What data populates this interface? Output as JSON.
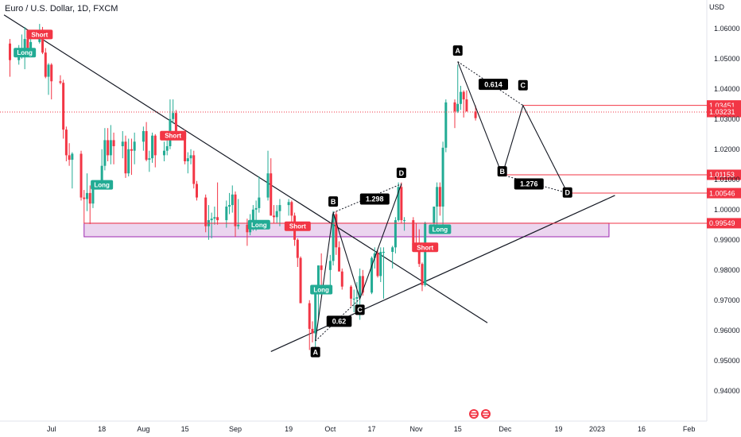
{
  "title": "Euro / U.S. Dollar, 1D, FXCM",
  "currency": "USD",
  "colors": {
    "up": "#22ab94",
    "down": "#f23645",
    "zone_fill": "#e1bee7",
    "zone_stroke": "#9c27b0",
    "level": "#f23645"
  },
  "chart_data": {
    "type": "candlestick",
    "y_axis": {
      "ticks": [
        "1.06000",
        "1.05000",
        "1.04000",
        "1.03000",
        "1.02000",
        "1.01000",
        "1.00000",
        "0.99000",
        "0.98000",
        "0.97000",
        "0.96000",
        "0.95000",
        "0.94000"
      ],
      "ylim": [
        0.933,
        1.067
      ]
    },
    "x_axis": {
      "ticks": [
        "Jul",
        "18",
        "Aug",
        "15",
        "Sep",
        "19",
        "Oct",
        "17",
        "Nov",
        "15",
        "Dec",
        "19",
        "2023",
        "16",
        "Feb"
      ]
    },
    "price_labels": [
      {
        "value": "1.03451",
        "style": "red"
      },
      {
        "value": "1.03231",
        "style": "red"
      },
      {
        "value": "1.01153",
        "style": "red"
      },
      {
        "value": "1.00546",
        "style": "red"
      },
      {
        "value": "0.99549",
        "style": "red"
      }
    ],
    "signals": [
      {
        "label": "Long",
        "type": "long",
        "date": "2022-06-22",
        "price": 1.052
      },
      {
        "label": "Short",
        "type": "short",
        "date": "2022-06-27",
        "price": 1.058
      },
      {
        "label": "Short",
        "type": "short",
        "date": "2022-08-11",
        "price": 1.0245
      },
      {
        "label": "Long",
        "type": "long",
        "date": "2022-07-18",
        "price": 1.0082
      },
      {
        "label": "Long",
        "type": "long",
        "date": "2022-09-09",
        "price": 0.995
      },
      {
        "label": "Short",
        "type": "short",
        "date": "2022-09-22",
        "price": 0.9945
      },
      {
        "label": "Long",
        "type": "long",
        "date": "2022-09-30",
        "price": 0.9735
      },
      {
        "label": "Long",
        "type": "long",
        "date": "2022-11-09",
        "price": 0.9935
      },
      {
        "label": "Short",
        "type": "short",
        "date": "2022-11-04",
        "price": 0.9875
      }
    ],
    "harmonic_past": {
      "points": [
        {
          "label": "A",
          "date": "2022-09-28",
          "price": 0.9565
        },
        {
          "label": "B",
          "date": "2022-10-04",
          "price": 0.999
        },
        {
          "label": "C",
          "date": "2022-10-13",
          "price": 0.9705
        },
        {
          "label": "D",
          "date": "2022-10-27",
          "price": 1.0085
        }
      ],
      "ratios": [
        {
          "label": "0.62",
          "date": "2022-10-06",
          "price": 0.963
        },
        {
          "label": "1.298",
          "date": "2022-10-18",
          "price": 1.0035
        }
      ]
    },
    "harmonic_projection": {
      "points": [
        {
          "label": "A",
          "date": "2022-11-15",
          "price": 1.049
        },
        {
          "label": "C",
          "date": "2022-12-07",
          "price": 1.0375
        },
        {
          "label": "B",
          "date": "2022-11-30",
          "price": 1.009
        },
        {
          "label": "D",
          "date": "2022-12-22",
          "price": 1.002
        }
      ],
      "path": [
        {
          "date": "2022-11-15",
          "price": 1.049
        },
        {
          "date": "2022-11-30",
          "price": 1.0115
        },
        {
          "date": "2022-12-07",
          "price": 1.0345
        },
        {
          "date": "2022-12-22",
          "price": 1.0055
        }
      ],
      "ratios": [
        {
          "label": "0.614",
          "date": "2022-11-27",
          "price": 1.0415
        },
        {
          "label": "1.276",
          "date": "2022-12-09",
          "price": 1.0085
        }
      ]
    },
    "trendlines": [
      {
        "from": {
          "date": "2022-06-15",
          "price": 1.0645
        },
        "to": {
          "date": "2022-11-25",
          "price": 0.9625
        }
      },
      {
        "from": {
          "date": "2022-09-13",
          "price": 0.953
        },
        "to": {
          "date": "2023-01-07",
          "price": 1.0047
        }
      }
    ],
    "zone": {
      "from_date": "2022-07-12",
      "to_date": "2023-01-05",
      "top": 0.9955,
      "bottom": 0.991
    },
    "candles": [
      {
        "date": "2022-06-17",
        "o": 1.055,
        "h": 1.0565,
        "l": 1.044,
        "c": 1.0495
      },
      {
        "date": "2022-06-20",
        "o": 1.0495,
        "h": 1.0545,
        "l": 1.048,
        "c": 1.052
      },
      {
        "date": "2022-06-21",
        "o": 1.052,
        "h": 1.058,
        "l": 1.05,
        "c": 1.0535
      },
      {
        "date": "2022-06-22",
        "o": 1.0535,
        "h": 1.0605,
        "l": 1.0465,
        "c": 1.0565
      },
      {
        "date": "2022-06-23",
        "o": 1.0565,
        "h": 1.057,
        "l": 1.051,
        "c": 1.052
      },
      {
        "date": "2022-06-24",
        "o": 1.052,
        "h": 1.0575,
        "l": 1.0505,
        "c": 1.0555
      },
      {
        "date": "2022-06-27",
        "o": 1.0555,
        "h": 1.0615,
        "l": 1.055,
        "c": 1.0585
      },
      {
        "date": "2022-06-28",
        "o": 1.0585,
        "h": 1.0605,
        "l": 1.0515,
        "c": 1.052
      },
      {
        "date": "2022-06-29",
        "o": 1.052,
        "h": 1.0535,
        "l": 1.0435,
        "c": 1.044
      },
      {
        "date": "2022-06-30",
        "o": 1.044,
        "h": 1.0485,
        "l": 1.038,
        "c": 1.048
      },
      {
        "date": "2022-07-01",
        "o": 1.048,
        "h": 1.0485,
        "l": 1.0365,
        "c": 1.0425
      },
      {
        "date": "2022-07-04",
        "o": 1.0425,
        "h": 1.0445,
        "l": 1.0415,
        "c": 1.042
      },
      {
        "date": "2022-07-05",
        "o": 1.042,
        "h": 1.043,
        "l": 1.0235,
        "c": 1.0265
      },
      {
        "date": "2022-07-06",
        "o": 1.0265,
        "h": 1.0275,
        "l": 1.016,
        "c": 1.018
      },
      {
        "date": "2022-07-07",
        "o": 1.018,
        "h": 1.022,
        "l": 1.0145,
        "c": 1.0165
      },
      {
        "date": "2022-07-08",
        "o": 1.0165,
        "h": 1.019,
        "l": 1.007,
        "c": 1.0185
      },
      {
        "date": "2022-07-11",
        "o": 1.0185,
        "h": 1.0195,
        "l": 1.003,
        "c": 1.004
      },
      {
        "date": "2022-07-12",
        "o": 1.004,
        "h": 1.0065,
        "l": 0.9955,
        "c": 1.0035
      },
      {
        "date": "2022-07-13",
        "o": 1.0035,
        "h": 1.012,
        "l": 0.9995,
        "c": 1.0055
      },
      {
        "date": "2022-07-14",
        "o": 1.0055,
        "h": 1.008,
        "l": 0.9952,
        "c": 1.002
      },
      {
        "date": "2022-07-15",
        "o": 1.002,
        "h": 1.0095,
        "l": 1.0005,
        "c": 1.008
      },
      {
        "date": "2022-07-18",
        "o": 1.008,
        "h": 1.02,
        "l": 1.0075,
        "c": 1.0145
      },
      {
        "date": "2022-07-19",
        "o": 1.0145,
        "h": 1.027,
        "l": 1.013,
        "c": 1.023
      },
      {
        "date": "2022-07-20",
        "o": 1.023,
        "h": 1.027,
        "l": 1.016,
        "c": 1.018
      },
      {
        "date": "2022-07-21",
        "o": 1.018,
        "h": 1.028,
        "l": 1.015,
        "c": 1.023
      },
      {
        "date": "2022-07-22",
        "o": 1.023,
        "h": 1.0255,
        "l": 1.015,
        "c": 1.021
      },
      {
        "date": "2022-07-25",
        "o": 1.021,
        "h": 1.026,
        "l": 1.017,
        "c": 1.0225
      },
      {
        "date": "2022-07-26",
        "o": 1.0225,
        "h": 1.0245,
        "l": 1.0105,
        "c": 1.012
      },
      {
        "date": "2022-07-27",
        "o": 1.012,
        "h": 1.0235,
        "l": 1.011,
        "c": 1.02
      },
      {
        "date": "2022-07-28",
        "o": 1.02,
        "h": 1.0235,
        "l": 1.0115,
        "c": 1.0195
      },
      {
        "date": "2022-07-29",
        "o": 1.0195,
        "h": 1.0255,
        "l": 1.015,
        "c": 1.0225
      },
      {
        "date": "2022-08-01",
        "o": 1.0225,
        "h": 1.0275,
        "l": 1.0195,
        "c": 1.026
      },
      {
        "date": "2022-08-02",
        "o": 1.026,
        "h": 1.029,
        "l": 1.016,
        "c": 1.0165
      },
      {
        "date": "2022-08-03",
        "o": 1.0165,
        "h": 1.0195,
        "l": 1.0125,
        "c": 1.017
      },
      {
        "date": "2022-08-04",
        "o": 1.017,
        "h": 1.0255,
        "l": 1.0155,
        "c": 1.0245
      },
      {
        "date": "2022-08-05",
        "o": 1.0245,
        "h": 1.025,
        "l": 1.014,
        "c": 1.018
      },
      {
        "date": "2022-08-08",
        "o": 1.018,
        "h": 1.0225,
        "l": 1.016,
        "c": 1.0195
      },
      {
        "date": "2022-08-09",
        "o": 1.0195,
        "h": 1.0245,
        "l": 1.018,
        "c": 1.021
      },
      {
        "date": "2022-08-10",
        "o": 1.021,
        "h": 1.0365,
        "l": 1.02,
        "c": 1.03
      },
      {
        "date": "2022-08-11",
        "o": 1.03,
        "h": 1.0365,
        "l": 1.0285,
        "c": 1.032
      },
      {
        "date": "2022-08-12",
        "o": 1.032,
        "h": 1.033,
        "l": 1.024,
        "c": 1.0255
      },
      {
        "date": "2022-08-15",
        "o": 1.0255,
        "h": 1.0265,
        "l": 1.015,
        "c": 1.016
      },
      {
        "date": "2022-08-16",
        "o": 1.016,
        "h": 1.019,
        "l": 1.012,
        "c": 1.017
      },
      {
        "date": "2022-08-17",
        "o": 1.017,
        "h": 1.02,
        "l": 1.015,
        "c": 1.018
      },
      {
        "date": "2022-08-18",
        "o": 1.018,
        "h": 1.0195,
        "l": 1.007,
        "c": 1.0085
      },
      {
        "date": "2022-08-19",
        "o": 1.0085,
        "h": 1.0095,
        "l": 1.003,
        "c": 1.004
      },
      {
        "date": "2022-08-22",
        "o": 1.004,
        "h": 1.005,
        "l": 0.9925,
        "c": 0.9945
      },
      {
        "date": "2022-08-23",
        "o": 0.9945,
        "h": 1.0015,
        "l": 0.99,
        "c": 0.9965
      },
      {
        "date": "2022-08-24",
        "o": 0.9965,
        "h": 0.999,
        "l": 0.9905,
        "c": 0.997
      },
      {
        "date": "2022-08-25",
        "o": 0.997,
        "h": 1.001,
        "l": 0.995,
        "c": 0.9975
      },
      {
        "date": "2022-08-26",
        "o": 0.9975,
        "h": 1.009,
        "l": 0.995,
        "c": 0.9965
      },
      {
        "date": "2022-08-29",
        "o": 0.9965,
        "h": 1.003,
        "l": 0.994,
        "c": 1.001
      },
      {
        "date": "2022-08-30",
        "o": 1.001,
        "h": 1.0055,
        "l": 0.9985,
        "c": 1.0015
      },
      {
        "date": "2022-08-31",
        "o": 1.0015,
        "h": 1.008,
        "l": 0.999,
        "c": 1.005
      },
      {
        "date": "2022-09-01",
        "o": 1.005,
        "h": 1.006,
        "l": 0.991,
        "c": 0.9945
      },
      {
        "date": "2022-09-02",
        "o": 0.9945,
        "h": 1.0035,
        "l": 0.9935,
        "c": 0.995
      },
      {
        "date": "2022-09-05",
        "o": 0.995,
        "h": 0.997,
        "l": 0.988,
        "c": 0.9925
      },
      {
        "date": "2022-09-06",
        "o": 0.9925,
        "h": 0.9985,
        "l": 0.9915,
        "c": 0.9935
      },
      {
        "date": "2022-09-07",
        "o": 0.9935,
        "h": 1.0015,
        "l": 0.993,
        "c": 1.0
      },
      {
        "date": "2022-09-08",
        "o": 1.0,
        "h": 1.003,
        "l": 0.993,
        "c": 1.0005
      },
      {
        "date": "2022-09-09",
        "o": 1.0005,
        "h": 1.011,
        "l": 0.999,
        "c": 1.004
      },
      {
        "date": "2022-09-12",
        "o": 1.004,
        "h": 1.0195,
        "l": 1.003,
        "c": 1.012
      },
      {
        "date": "2022-09-13",
        "o": 1.012,
        "h": 1.017,
        "l": 0.998,
        "c": 0.998
      },
      {
        "date": "2022-09-14",
        "o": 0.998,
        "h": 1.0015,
        "l": 0.9955,
        "c": 0.9975
      },
      {
        "date": "2022-09-15",
        "o": 0.9975,
        "h": 1.0015,
        "l": 0.9955,
        "c": 0.9995
      },
      {
        "date": "2022-09-16",
        "o": 0.9995,
        "h": 1.0035,
        "l": 0.9945,
        "c": 1.0015
      },
      {
        "date": "2022-09-19",
        "o": 1.0015,
        "h": 1.0035,
        "l": 0.998,
        "c": 1.0025
      },
      {
        "date": "2022-09-20",
        "o": 1.0025,
        "h": 1.003,
        "l": 0.9955,
        "c": 0.998
      },
      {
        "date": "2022-09-21",
        "o": 0.998,
        "h": 0.999,
        "l": 0.988,
        "c": 0.99
      },
      {
        "date": "2022-09-22",
        "o": 0.99,
        "h": 0.9905,
        "l": 0.981,
        "c": 0.984
      },
      {
        "date": "2022-09-23",
        "o": 0.984,
        "h": 0.9845,
        "l": 0.969,
        "c": 0.969
      },
      {
        "date": "2022-09-26",
        "o": 0.969,
        "h": 0.97,
        "l": 0.9535,
        "c": 0.9605
      },
      {
        "date": "2022-09-27",
        "o": 0.9605,
        "h": 0.963,
        "l": 0.956,
        "c": 0.959
      },
      {
        "date": "2022-09-28",
        "o": 0.959,
        "h": 0.9735,
        "l": 0.9535,
        "c": 0.9735
      },
      {
        "date": "2022-09-29",
        "o": 0.9735,
        "h": 0.9815,
        "l": 0.9635,
        "c": 0.9815
      },
      {
        "date": "2022-09-30",
        "o": 0.9815,
        "h": 0.9855,
        "l": 0.9745,
        "c": 0.98
      },
      {
        "date": "2022-10-03",
        "o": 0.98,
        "h": 0.985,
        "l": 0.9745,
        "c": 0.983
      },
      {
        "date": "2022-10-04",
        "o": 0.983,
        "h": 0.9995,
        "l": 0.9815,
        "c": 0.9985
      },
      {
        "date": "2022-10-05",
        "o": 0.9985,
        "h": 0.9995,
        "l": 0.985,
        "c": 0.9875
      },
      {
        "date": "2022-10-06",
        "o": 0.9875,
        "h": 0.9895,
        "l": 0.98,
        "c": 0.9795
      },
      {
        "date": "2022-10-07",
        "o": 0.9795,
        "h": 0.9805,
        "l": 0.9735,
        "c": 0.9745
      },
      {
        "date": "2022-10-10",
        "o": 0.9745,
        "h": 0.975,
        "l": 0.968,
        "c": 0.9705
      },
      {
        "date": "2022-10-11",
        "o": 0.9705,
        "h": 0.9735,
        "l": 0.966,
        "c": 0.9705
      },
      {
        "date": "2022-10-12",
        "o": 0.9705,
        "h": 0.976,
        "l": 0.967,
        "c": 0.971
      },
      {
        "date": "2022-10-13",
        "o": 0.971,
        "h": 0.9805,
        "l": 0.9635,
        "c": 0.978
      },
      {
        "date": "2022-10-14",
        "o": 0.978,
        "h": 0.98,
        "l": 0.9715,
        "c": 0.9725
      },
      {
        "date": "2022-10-17",
        "o": 0.9725,
        "h": 0.9845,
        "l": 0.972,
        "c": 0.984
      },
      {
        "date": "2022-10-18",
        "o": 0.984,
        "h": 0.9875,
        "l": 0.9805,
        "c": 0.9855
      },
      {
        "date": "2022-10-19",
        "o": 0.9855,
        "h": 0.9865,
        "l": 0.9775,
        "c": 0.978
      },
      {
        "date": "2022-10-20",
        "o": 0.978,
        "h": 0.9875,
        "l": 0.976,
        "c": 0.986
      },
      {
        "date": "2022-10-21",
        "o": 0.986,
        "h": 0.9875,
        "l": 0.9705,
        "c": 0.986
      },
      {
        "date": "2022-10-24",
        "o": 0.986,
        "h": 0.988,
        "l": 0.9805,
        "c": 0.9875
      },
      {
        "date": "2022-10-25",
        "o": 0.9875,
        "h": 0.9975,
        "l": 0.9855,
        "c": 0.9965
      },
      {
        "date": "2022-10-26",
        "o": 0.9965,
        "h": 1.009,
        "l": 0.996,
        "c": 1.0075
      },
      {
        "date": "2022-10-27",
        "o": 1.0075,
        "h": 1.009,
        "l": 0.9955,
        "c": 0.9965
      },
      {
        "date": "2022-10-28",
        "o": 0.9965,
        "h": 0.9975,
        "l": 0.993,
        "c": 0.9965
      },
      {
        "date": "2022-10-31",
        "o": 0.9965,
        "h": 0.9975,
        "l": 0.987,
        "c": 0.9885
      },
      {
        "date": "2022-11-01",
        "o": 0.9885,
        "h": 0.9955,
        "l": 0.986,
        "c": 0.988
      },
      {
        "date": "2022-11-02",
        "o": 0.988,
        "h": 0.9935,
        "l": 0.981,
        "c": 0.982
      },
      {
        "date": "2022-11-03",
        "o": 0.982,
        "h": 0.9825,
        "l": 0.973,
        "c": 0.975
      },
      {
        "date": "2022-11-04",
        "o": 0.975,
        "h": 0.996,
        "l": 0.9745,
        "c": 0.9955
      },
      {
        "date": "2022-11-07",
        "o": 0.9955,
        "h": 1.0005,
        "l": 0.992,
        "c": 1.001
      },
      {
        "date": "2022-11-08",
        "o": 1.001,
        "h": 1.009,
        "l": 0.995,
        "c": 1.0075
      },
      {
        "date": "2022-11-09",
        "o": 1.0075,
        "h": 1.009,
        "l": 0.998,
        "c": 1.001
      },
      {
        "date": "2022-11-10",
        "o": 1.001,
        "h": 1.0225,
        "l": 0.9935,
        "c": 1.0205
      },
      {
        "date": "2022-11-11",
        "o": 1.0205,
        "h": 1.0365,
        "l": 1.019,
        "c": 1.0355
      },
      {
        "date": "2022-11-14",
        "o": 1.0355,
        "h": 1.0365,
        "l": 1.027,
        "c": 1.0325
      },
      {
        "date": "2022-11-15",
        "o": 1.0325,
        "h": 1.048,
        "l": 1.032,
        "c": 1.035
      },
      {
        "date": "2022-11-16",
        "o": 1.035,
        "h": 1.041,
        "l": 1.033,
        "c": 1.039
      },
      {
        "date": "2022-11-17",
        "o": 1.039,
        "h": 1.0395,
        "l": 1.0305,
        "c": 1.0365
      },
      {
        "date": "2022-11-18",
        "o": 1.0365,
        "h": 1.0395,
        "l": 1.0325,
        "c": 1.0325
      },
      {
        "date": "2022-11-21",
        "o": 1.0325,
        "h": 1.0345,
        "l": 1.0295,
        "c": 1.0303
      }
    ]
  }
}
